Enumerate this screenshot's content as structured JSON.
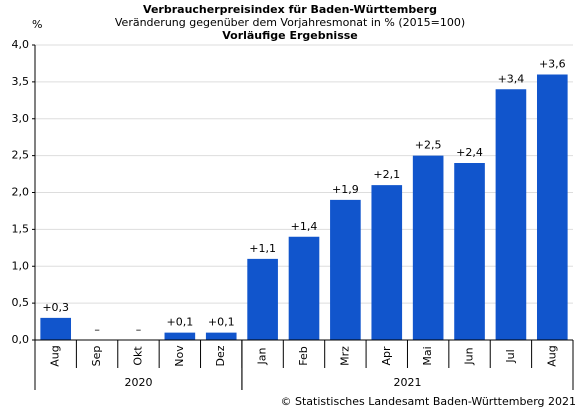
{
  "chart_data": {
    "type": "bar",
    "title": "Verbraucherpreisindex für Baden-Württemberg",
    "subtitle": "Veränderung gegenüber dem Vorjahresmonat in % (2015=100)",
    "note": "Vorläufige Ergebnisse",
    "y_label": "%",
    "source": "© Statistisches Landesamt Baden-Württemberg 2021",
    "categories": [
      "Aug",
      "Sep",
      "Okt",
      "Nov",
      "Dez",
      "Jan",
      "Feb",
      "Mrz",
      "Apr",
      "Mai",
      "Jun",
      "Jul",
      "Aug"
    ],
    "values": [
      0.3,
      0,
      0,
      0.1,
      0.1,
      1.1,
      1.4,
      1.9,
      2.1,
      2.5,
      2.4,
      3.4,
      3.6
    ],
    "value_labels": [
      "+0,3",
      "–",
      "–",
      "+0,1",
      "+0,1",
      "+1,1",
      "+1,4",
      "+1,9",
      "+2,1",
      "+2,5",
      "+2,4",
      "+3,4",
      "+3,6"
    ],
    "groups": [
      {
        "label": "2020",
        "count": 5
      },
      {
        "label": "2021",
        "count": 8
      }
    ],
    "color": "#1155cc",
    "ylim": [
      0,
      4
    ],
    "yticks": [
      {
        "value": 0,
        "label": "0,0"
      },
      {
        "value": 0.5,
        "label": "0,5"
      },
      {
        "value": 1,
        "label": "1,0"
      },
      {
        "value": 1.5,
        "label": "1,5"
      },
      {
        "value": 2,
        "label": "2,0"
      },
      {
        "value": 2.5,
        "label": "2,5"
      },
      {
        "value": 3,
        "label": "3,0"
      },
      {
        "value": 3.5,
        "label": "3,5"
      },
      {
        "value": 4,
        "label": "4,0"
      }
    ],
    "grid": true
  }
}
